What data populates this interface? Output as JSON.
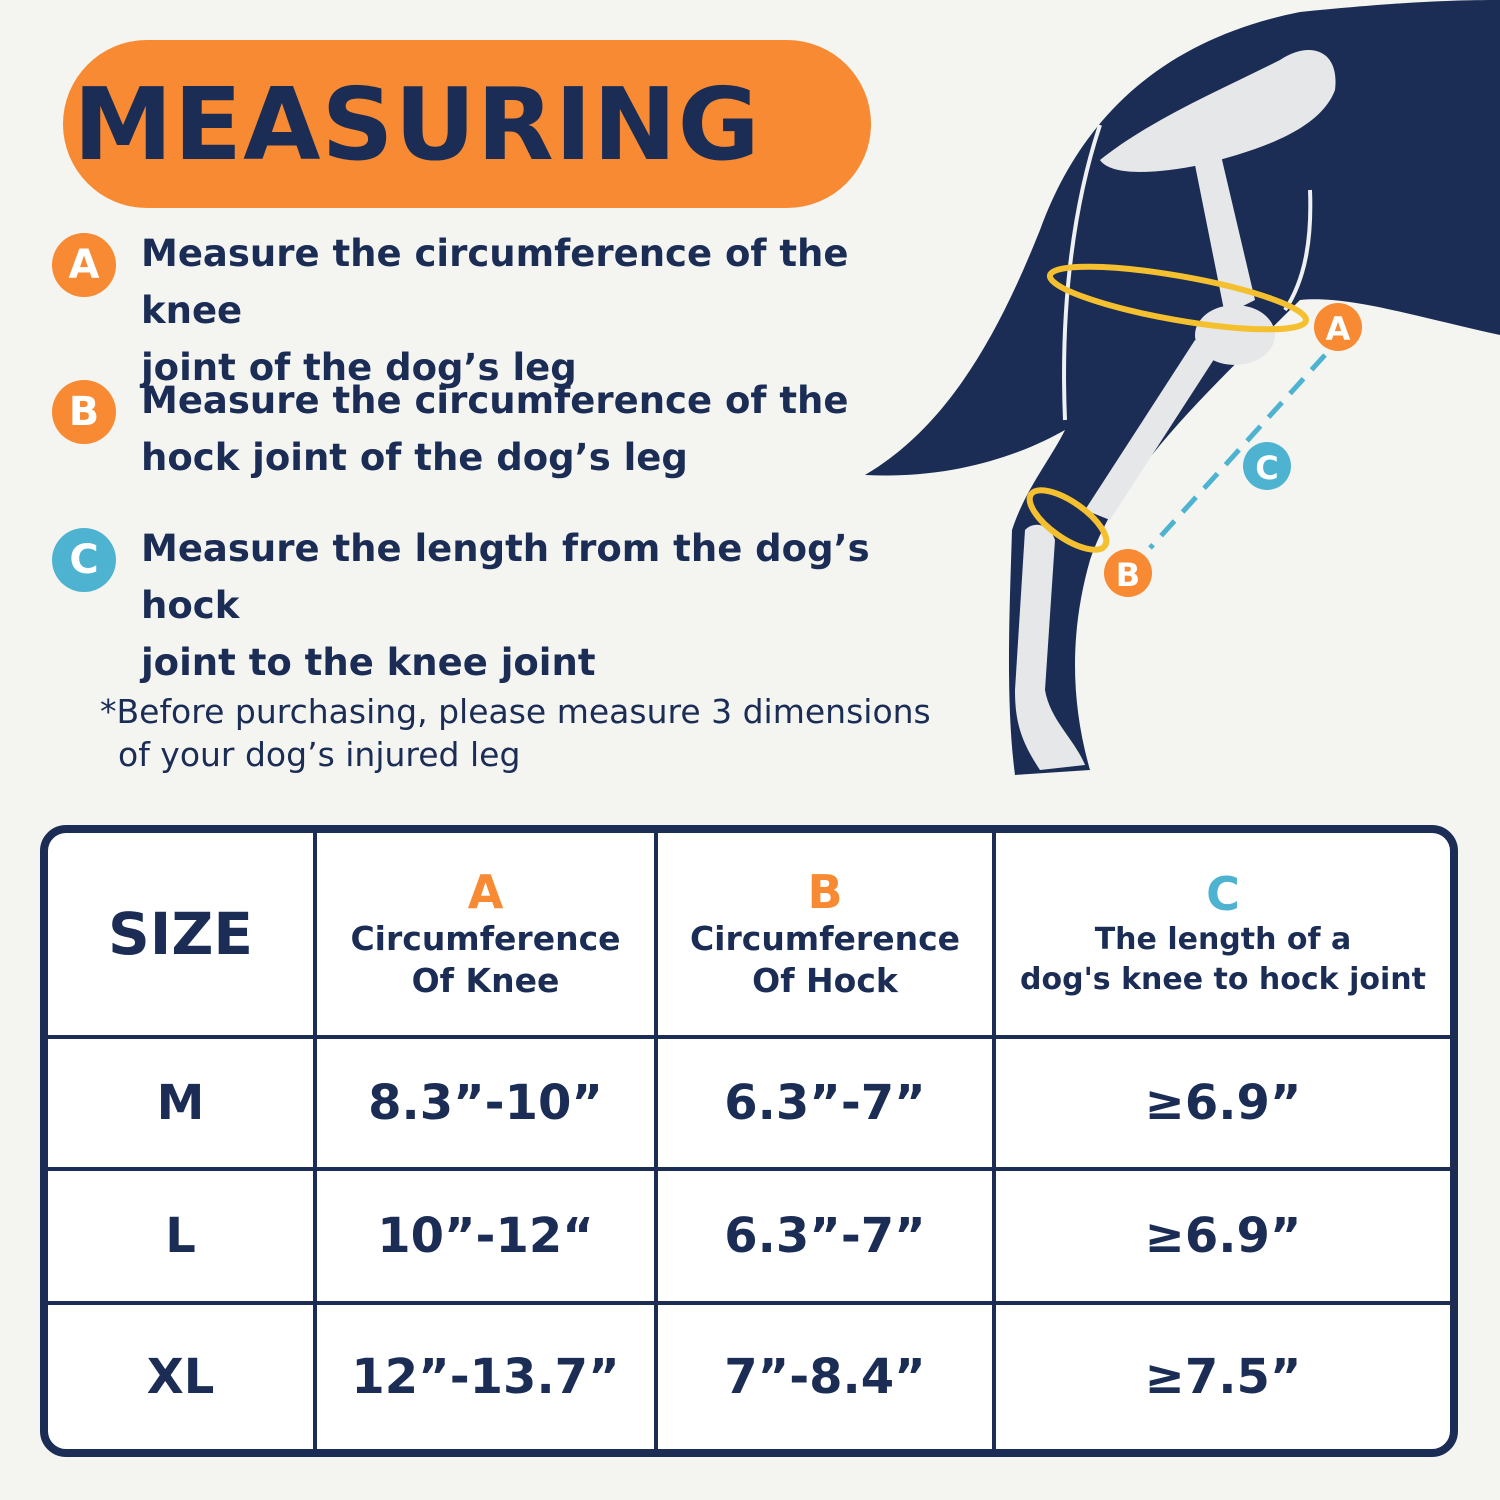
{
  "title": "MEASURING",
  "colors": {
    "navy": "#1b2d55",
    "orange": "#f78a32",
    "teal": "#4db3d0",
    "ring_yellow": "#f4c030",
    "background": "#f4f4f1"
  },
  "steps": [
    {
      "letter": "A",
      "color": "#f78a32",
      "line1": "Measure the circumference of the knee",
      "line2": "joint of the dog’s leg"
    },
    {
      "letter": "B",
      "color": "#f78a32",
      "line1": "Measure the circumference of the",
      "line2": "hock joint of the dog’s leg"
    },
    {
      "letter": "C",
      "color": "#4db3d0",
      "line1": "Measure the length from the dog’s hock",
      "line2": "joint to the knee joint"
    }
  ],
  "note": {
    "line1": "*Before purchasing, please measure 3 dimensions",
    "line2": "of your dog’s injured leg"
  },
  "illustration": {
    "labels": [
      "A",
      "B",
      "C"
    ]
  },
  "table": {
    "headers": [
      {
        "letter": "",
        "line1": "SIZE",
        "line2": ""
      },
      {
        "letter": "A",
        "line1": "Circumference",
        "line2": "Of Knee"
      },
      {
        "letter": "B",
        "line1": "Circumference",
        "line2": "Of Hock"
      },
      {
        "letter": "C",
        "line1": "The length of a",
        "line2": "dog's knee to hock joint"
      }
    ],
    "rows": [
      [
        "M",
        "8.3”-10”",
        "6.3”-7”",
        "≥6.9”"
      ],
      [
        "L",
        "10”-12“",
        "6.3”-7”",
        "≥6.9”"
      ],
      [
        "XL",
        "12”-13.7”",
        "7”-8.4”",
        "≥7.5”"
      ]
    ]
  }
}
